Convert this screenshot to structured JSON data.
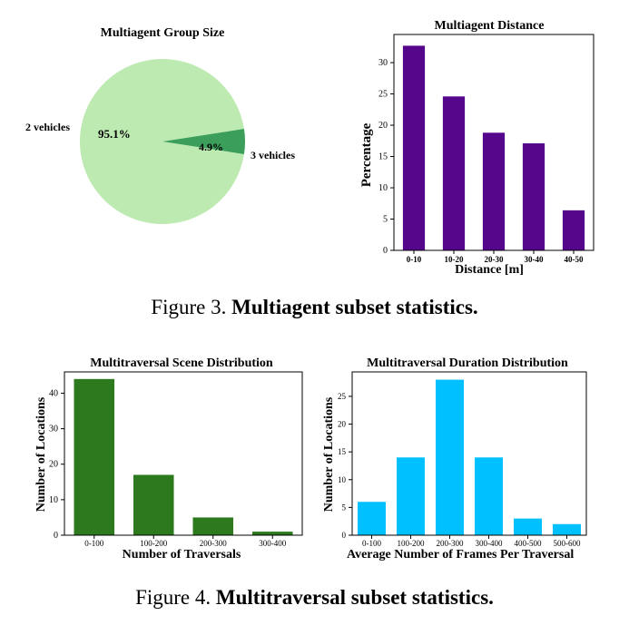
{
  "figures": [
    {
      "prefix": "Figure 3.",
      "title": "Multiagent subset statistics."
    },
    {
      "prefix": "Figure 4.",
      "title": "Multitraversal subset statistics."
    }
  ],
  "chart_data": [
    {
      "type": "pie",
      "title": "Multiagent Group Size",
      "labels": [
        "2 vehicles",
        "3 vehicles"
      ],
      "values": [
        95.1,
        4.9
      ],
      "value_labels": [
        "95.1%",
        "4.9%"
      ],
      "colors": [
        "#bdeab0",
        "#3b9e5a"
      ]
    },
    {
      "type": "bar",
      "title": "Multiagent Distance",
      "categories": [
        "0-10",
        "10-20",
        "20-30",
        "30-40",
        "40-50"
      ],
      "values": [
        32.7,
        24.6,
        18.8,
        17.1,
        6.4
      ],
      "xlabel": "Distance [m]",
      "ylabel": "Percentage",
      "ylim": [
        0,
        34.5
      ],
      "yticks": [
        0,
        5,
        10,
        15,
        20,
        25,
        30
      ],
      "color": "#56068b",
      "grid": false
    },
    {
      "type": "bar",
      "title": "Multitraversal Scene Distribution",
      "categories": [
        "0-100",
        "100-200",
        "200-300",
        "300-400"
      ],
      "values": [
        44,
        17,
        5,
        1
      ],
      "xlabel": "Number of Traversals",
      "ylabel": "Number of Locations",
      "ylim": [
        0,
        46
      ],
      "yticks": [
        0,
        10,
        20,
        30,
        40
      ],
      "color": "#2d7a1e",
      "grid": false
    },
    {
      "type": "bar",
      "title": "Multitraversal Duration Distribution",
      "categories": [
        "0-100",
        "100-200",
        "200-300",
        "300-400",
        "400-500",
        "500-600"
      ],
      "values": [
        6,
        14,
        28,
        14,
        3,
        2
      ],
      "xlabel": "Average Number of Frames Per Traversal",
      "ylabel": "Number of Locations",
      "ylim": [
        0,
        29.4
      ],
      "yticks": [
        0,
        5,
        10,
        15,
        20,
        25
      ],
      "color": "#00c0ff",
      "grid": false
    }
  ]
}
